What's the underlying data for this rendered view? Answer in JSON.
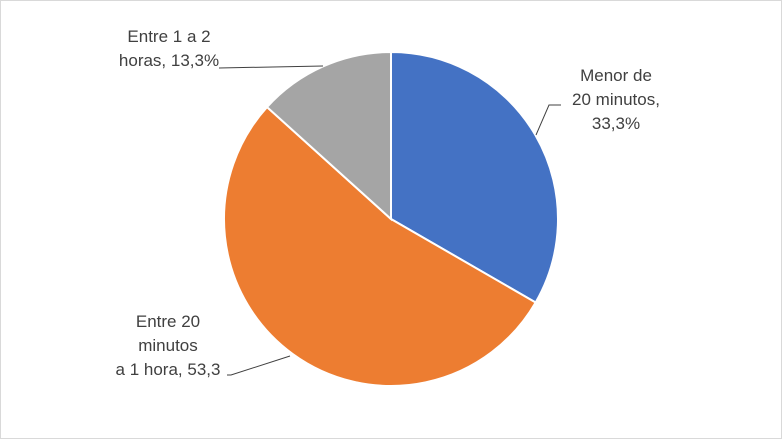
{
  "chart_data": {
    "type": "pie",
    "slices": [
      {
        "label": "Menor de\n20 minutos,\n33,3%",
        "value": 33.3,
        "color": "#4472c4"
      },
      {
        "label": "Entre 20\nminutos\na 1 hora, 53,3",
        "value": 53.3,
        "color": "#ed7d31"
      },
      {
        "label": "Entre 1 a 2\nhoras, 13,3%",
        "value": 13.3,
        "color": "#a5a5a5"
      }
    ],
    "start_angle": "12 o'clock",
    "direction": "clockwise",
    "slice_border": "#ffffff",
    "label_color": "#404040",
    "leader_line_color": "#404040",
    "legend": "none"
  }
}
